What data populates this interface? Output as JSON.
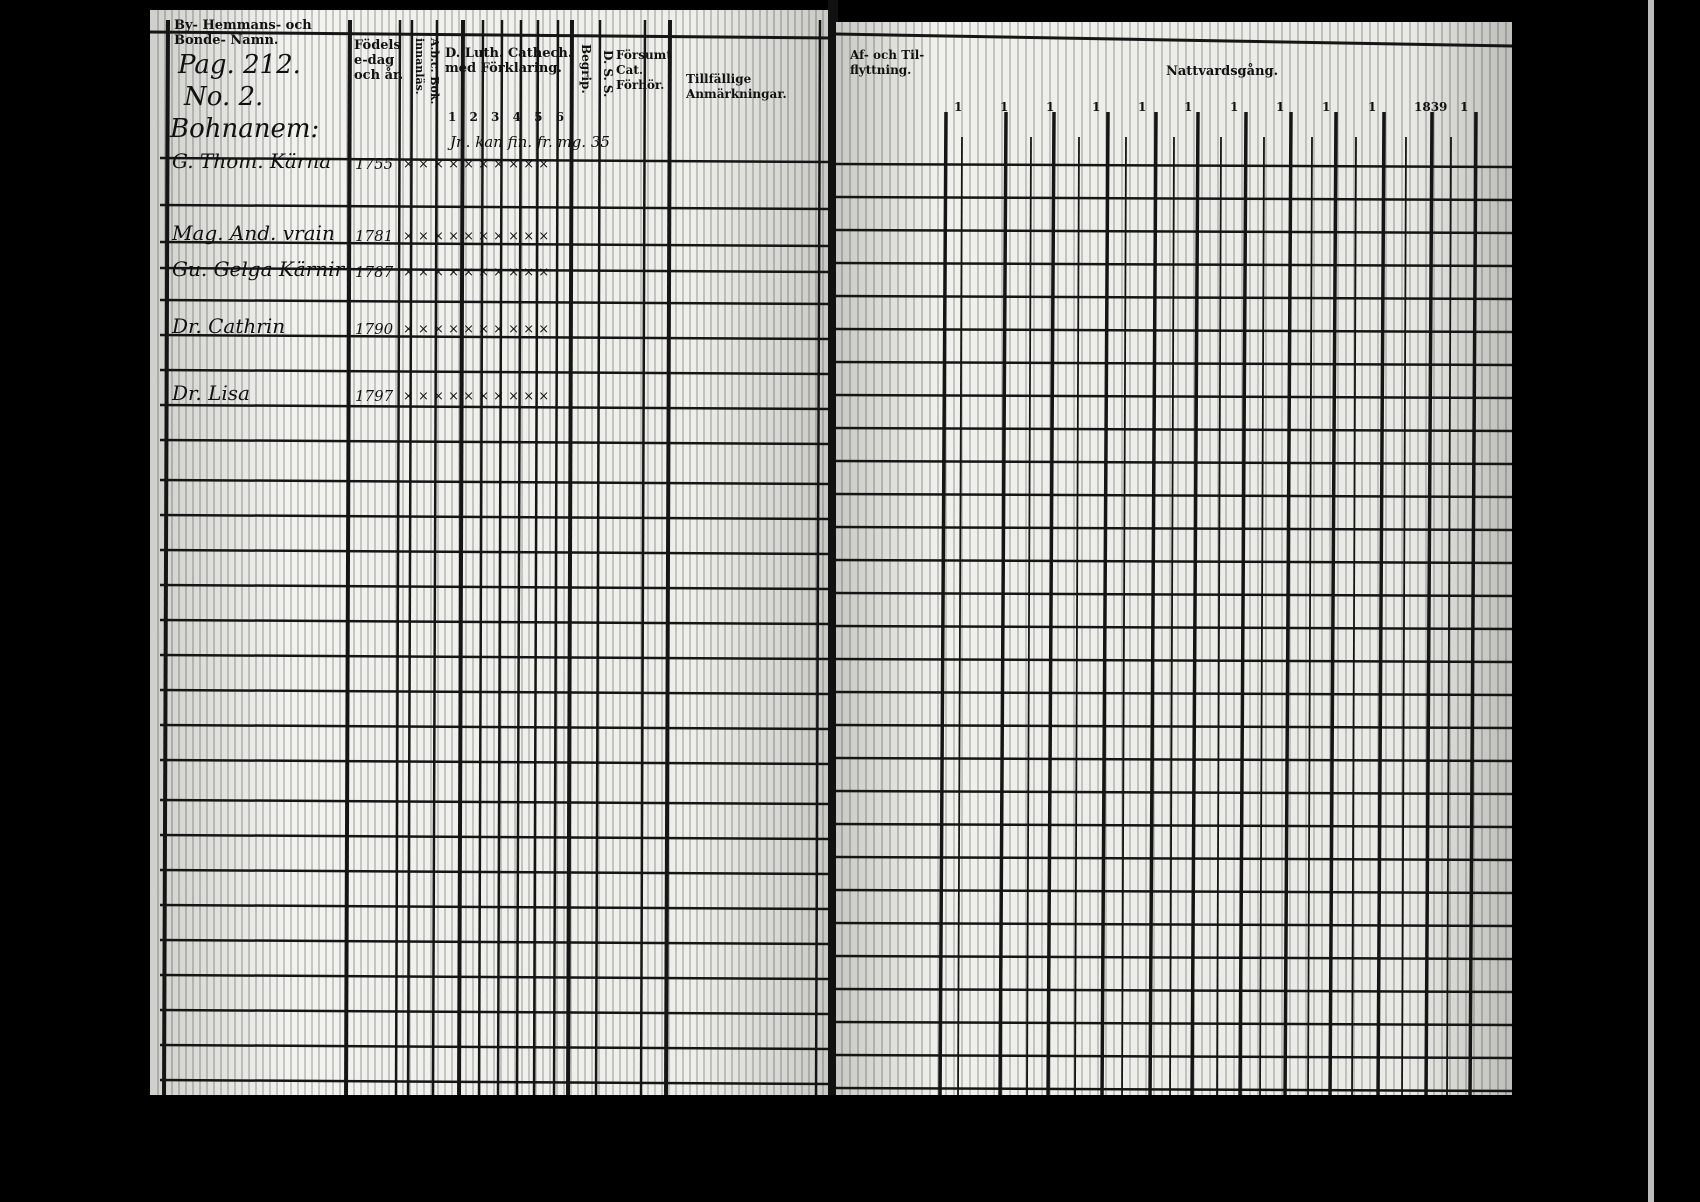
{
  "left_page": {
    "headers": {
      "name": "By- Hemmans- och Bonde- Namn.",
      "birth": "Födelse-dag och år.",
      "abc": "A.b.c. Bok. innanläs.",
      "catechism": "D. Luth. Cathech. med Förklaring.",
      "catechism_numbers": [
        "1",
        "2",
        "3",
        "4",
        "5",
        "6"
      ],
      "begrip": "Begrip.",
      "dss": "D. S. S.",
      "forsumt": "Försumt Cat. Förhör.",
      "remarks": "Tillfällige Anmärkningar."
    },
    "handwritten_header": [
      "Pag. 212.",
      "No. 2.",
      "Bohnanem:"
    ],
    "entries": [
      {
        "name": "G. Thom. Kärna",
        "year": "1755",
        "marks": "× × × × × × × × × ×",
        "remark": "Jn. kan fin. fr. mg. 35"
      },
      {
        "name": "Mag. And. vrain",
        "year": "1781",
        "marks": "× × × × × × × × × ×",
        "remark": ""
      },
      {
        "name": "Gu. Gelga Kärnir",
        "year": "1787",
        "marks": "× × × × × × × × × ×",
        "remark": ""
      },
      {
        "name": "Dr. Cathrin",
        "year": "1790",
        "marks": "× × × × × × × × × ×",
        "remark": ""
      },
      {
        "name": "Dr. Lisa",
        "year": "1797",
        "marks": "× × × × × × × × × ×",
        "remark": ""
      }
    ]
  },
  "right_page": {
    "headers": {
      "moving": "Af- och Til- flyttning.",
      "communion": "Nattvardsgång."
    },
    "column_numbers": [
      "1",
      "1",
      "1",
      "1",
      "1",
      "1",
      "1",
      "1",
      "1",
      "1",
      "1839",
      "1"
    ]
  }
}
